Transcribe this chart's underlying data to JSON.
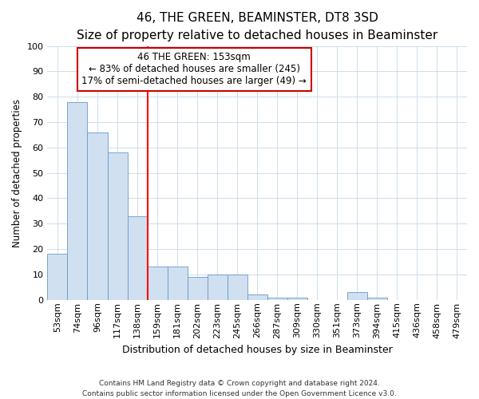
{
  "title": "46, THE GREEN, BEAMINSTER, DT8 3SD",
  "subtitle": "Size of property relative to detached houses in Beaminster",
  "xlabel": "Distribution of detached houses by size in Beaminster",
  "ylabel": "Number of detached properties",
  "categories": [
    "53sqm",
    "74sqm",
    "96sqm",
    "117sqm",
    "138sqm",
    "159sqm",
    "181sqm",
    "202sqm",
    "223sqm",
    "245sqm",
    "266sqm",
    "287sqm",
    "309sqm",
    "330sqm",
    "351sqm",
    "373sqm",
    "394sqm",
    "415sqm",
    "436sqm",
    "458sqm",
    "479sqm"
  ],
  "values": [
    18,
    78,
    66,
    58,
    33,
    13,
    13,
    9,
    10,
    10,
    2,
    1,
    1,
    0,
    0,
    3,
    1,
    0,
    0,
    0,
    0
  ],
  "bar_color": "#d0e0f0",
  "bar_edge_color": "#6699cc",
  "red_line_x": 4.5,
  "annotation_line1": "46 THE GREEN: 153sqm",
  "annotation_line2": "← 83% of detached houses are smaller (245)",
  "annotation_line3": "17% of semi-detached houses are larger (49) →",
  "annotation_box_edge": "#cc0000",
  "ylim": [
    0,
    100
  ],
  "yticks": [
    0,
    10,
    20,
    30,
    40,
    50,
    60,
    70,
    80,
    90,
    100
  ],
  "footnote1": "Contains HM Land Registry data © Crown copyright and database right 2024.",
  "footnote2": "Contains public sector information licensed under the Open Government Licence v3.0.",
  "title_fontsize": 11,
  "subtitle_fontsize": 9.5,
  "tick_fontsize": 8,
  "xlabel_fontsize": 9,
  "ylabel_fontsize": 8.5,
  "annot_fontsize": 8.5,
  "grid_color": "#c8d8e8",
  "plot_bg": "#ffffff",
  "fig_bg": "#ffffff"
}
